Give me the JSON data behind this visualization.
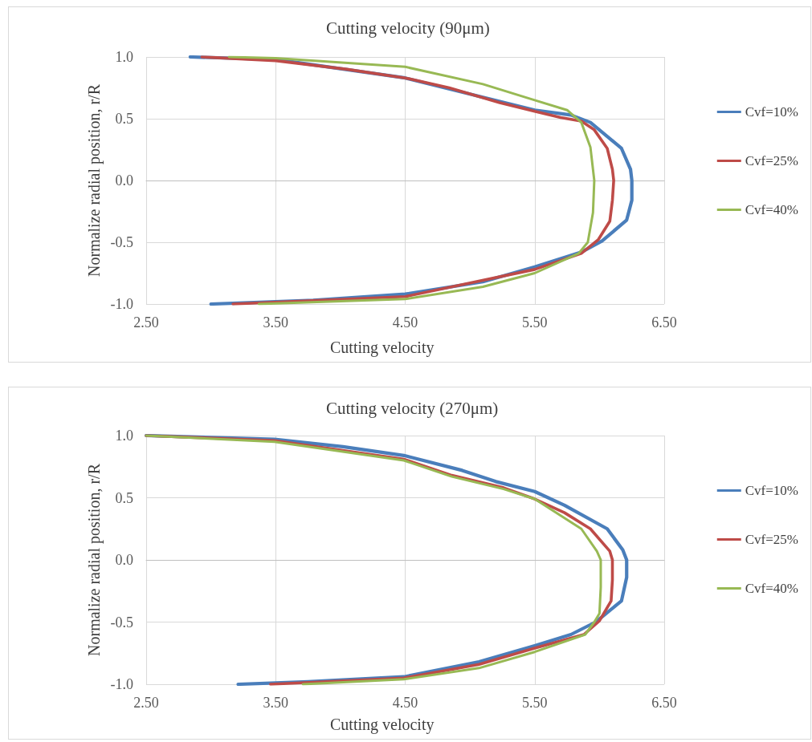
{
  "chart_data": [
    {
      "type": "line",
      "title": "Cutting velocity (90μm)",
      "xlabel": "Cutting velocity",
      "ylabel": "Normalize radial position, r/R",
      "xlim": [
        2.5,
        6.5
      ],
      "xticks": [
        {
          "value": 2.5,
          "label": "2.50"
        },
        {
          "value": 3.5,
          "label": "3.50"
        },
        {
          "value": 4.5,
          "label": "4.50"
        },
        {
          "value": 5.5,
          "label": "5.50"
        },
        {
          "value": 6.5,
          "label": "6.50"
        }
      ],
      "ylim": [
        -1,
        1
      ],
      "yticks": [
        {
          "value": -1,
          "label": "-1.0"
        },
        {
          "value": -0.5,
          "label": "-0.5"
        },
        {
          "value": 0,
          "label": "0.0"
        },
        {
          "value": 0.5,
          "label": "0.5"
        },
        {
          "value": 1,
          "label": "1.0"
        }
      ],
      "grid": true,
      "legend": "right",
      "marker": "none",
      "line_style": "solid",
      "series": [
        {
          "name": "Cvf=10%",
          "color": "#4a7ebb",
          "x": [
            2.84,
            3.5,
            4.5,
            5.5,
            5.78,
            5.93,
            6.17,
            6.24,
            6.25,
            6.25,
            6.21,
            6.02,
            5.86,
            5.5,
            5.1,
            4.5,
            3.79,
            3.0
          ],
          "values": [
            1.0,
            0.98,
            0.83,
            0.57,
            0.53,
            0.47,
            0.26,
            0.09,
            0,
            -0.16,
            -0.32,
            -0.49,
            -0.58,
            -0.7,
            -0.82,
            -0.92,
            -0.97,
            -1.0
          ]
        },
        {
          "name": "Cvf=25%",
          "color": "#be4b48",
          "x": [
            2.93,
            3.5,
            4.05,
            4.5,
            4.84,
            5.23,
            5.5,
            5.7,
            5.86,
            5.96,
            6.06,
            6.1,
            6.11,
            6.1,
            6.08,
            5.99,
            5.86,
            5.5,
            4.5,
            3.17
          ],
          "values": [
            1.0,
            0.97,
            0.9,
            0.83,
            0.75,
            0.63,
            0.56,
            0.51,
            0.48,
            0.41,
            0.26,
            0.09,
            0,
            -0.16,
            -0.33,
            -0.48,
            -0.59,
            -0.72,
            -0.94,
            -1.0
          ]
        },
        {
          "name": "Cvf=40%",
          "color": "#98b954",
          "x": [
            3.14,
            3.5,
            4.5,
            5.1,
            5.5,
            5.75,
            5.86,
            5.93,
            5.96,
            5.95,
            5.91,
            5.84,
            5.5,
            5.1,
            4.5,
            3.37
          ],
          "values": [
            1.0,
            0.99,
            0.92,
            0.78,
            0.65,
            0.57,
            0.47,
            0.27,
            0,
            -0.26,
            -0.5,
            -0.59,
            -0.75,
            -0.86,
            -0.96,
            -1.0
          ]
        }
      ]
    },
    {
      "type": "line",
      "title": "Cutting velocity (270μm)",
      "xlabel": "Cutting velocity",
      "ylabel": "Normalize radial position, r/R",
      "xlim": [
        2.5,
        6.5
      ],
      "xticks": [
        {
          "value": 2.5,
          "label": "2.50"
        },
        {
          "value": 3.5,
          "label": "3.50"
        },
        {
          "value": 4.5,
          "label": "4.50"
        },
        {
          "value": 5.5,
          "label": "5.50"
        },
        {
          "value": 6.5,
          "label": "6.50"
        }
      ],
      "ylim": [
        -1,
        1
      ],
      "yticks": [
        {
          "value": -1,
          "label": "-1.0"
        },
        {
          "value": -0.5,
          "label": "-0.5"
        },
        {
          "value": 0,
          "label": "0.0"
        },
        {
          "value": 0.5,
          "label": "0.5"
        },
        {
          "value": 1,
          "label": "1.0"
        }
      ],
      "grid": true,
      "legend": "right",
      "marker": "none",
      "line_style": "solid",
      "series": [
        {
          "name": "Cvf=10%",
          "color": "#4a7ebb",
          "x": [
            2.5,
            3.49,
            4.02,
            4.49,
            4.94,
            5.2,
            5.5,
            5.73,
            6.06,
            6.18,
            6.21,
            6.21,
            6.17,
            5.97,
            5.78,
            5.5,
            5.07,
            4.49,
            3.75,
            3.21
          ],
          "values": [
            1.0,
            0.97,
            0.91,
            0.84,
            0.72,
            0.63,
            0.55,
            0.44,
            0.25,
            0.08,
            0,
            -0.14,
            -0.33,
            -0.5,
            -0.6,
            -0.69,
            -0.82,
            -0.94,
            -0.98,
            -1.0
          ]
        },
        {
          "name": "Cvf=25%",
          "color": "#be4b48",
          "x": [
            2.5,
            3.49,
            4.49,
            4.86,
            5.26,
            5.5,
            5.73,
            5.93,
            6.08,
            6.1,
            6.1,
            6.09,
            6.0,
            5.88,
            5.5,
            5.07,
            4.49,
            3.46
          ],
          "values": [
            1.0,
            0.96,
            0.81,
            0.68,
            0.58,
            0.49,
            0.38,
            0.25,
            0.07,
            0,
            -0.16,
            -0.33,
            -0.49,
            -0.6,
            -0.71,
            -0.84,
            -0.95,
            -1.0
          ]
        },
        {
          "name": "Cvf=40%",
          "color": "#98b954",
          "x": [
            2.5,
            3.49,
            4.49,
            4.86,
            5.26,
            5.5,
            5.86,
            5.98,
            6.01,
            6.01,
            6.0,
            5.96,
            5.89,
            5.5,
            5.07,
            4.49,
            3.71
          ],
          "values": [
            1.0,
            0.95,
            0.8,
            0.67,
            0.57,
            0.49,
            0.25,
            0.07,
            0,
            -0.22,
            -0.43,
            -0.5,
            -0.6,
            -0.74,
            -0.87,
            -0.96,
            -1.0
          ]
        }
      ]
    }
  ]
}
